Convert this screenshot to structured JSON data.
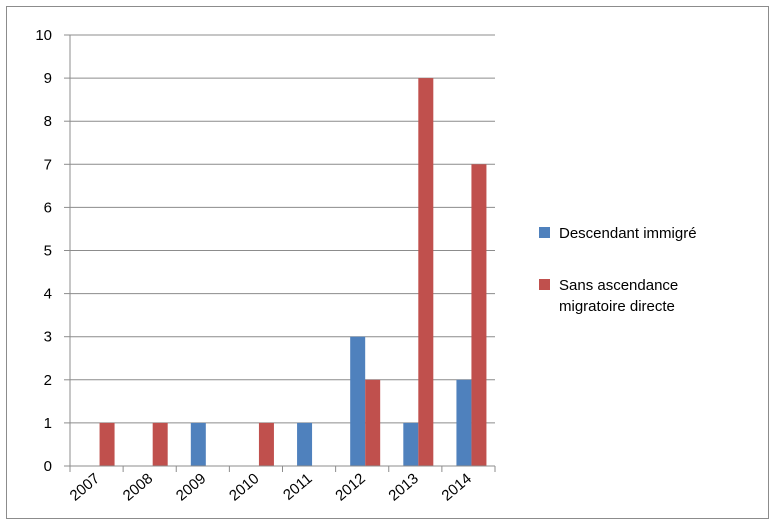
{
  "chart_data": {
    "type": "bar",
    "title": "",
    "xlabel": "",
    "ylabel": "",
    "categories": [
      "2007",
      "2008",
      "2009",
      "2010",
      "2011",
      "2012",
      "2013",
      "2014"
    ],
    "series": [
      {
        "name": "Descendant immigré",
        "color": "#4f81bd",
        "values": [
          0,
          0,
          1,
          0,
          1,
          3,
          1,
          2
        ]
      },
      {
        "name": "Sans ascendance migratoire directe",
        "legend_lines": [
          "Sans ascendance",
          "migratoire directe"
        ],
        "color": "#c0504d",
        "values": [
          1,
          1,
          0,
          1,
          0,
          2,
          9,
          7
        ]
      }
    ],
    "ylim": [
      0,
      10
    ],
    "yticks": [
      "0",
      "1",
      "2",
      "3",
      "4",
      "5",
      "6",
      "7",
      "8",
      "9",
      "10"
    ],
    "grid": true,
    "legend_position": "right"
  }
}
